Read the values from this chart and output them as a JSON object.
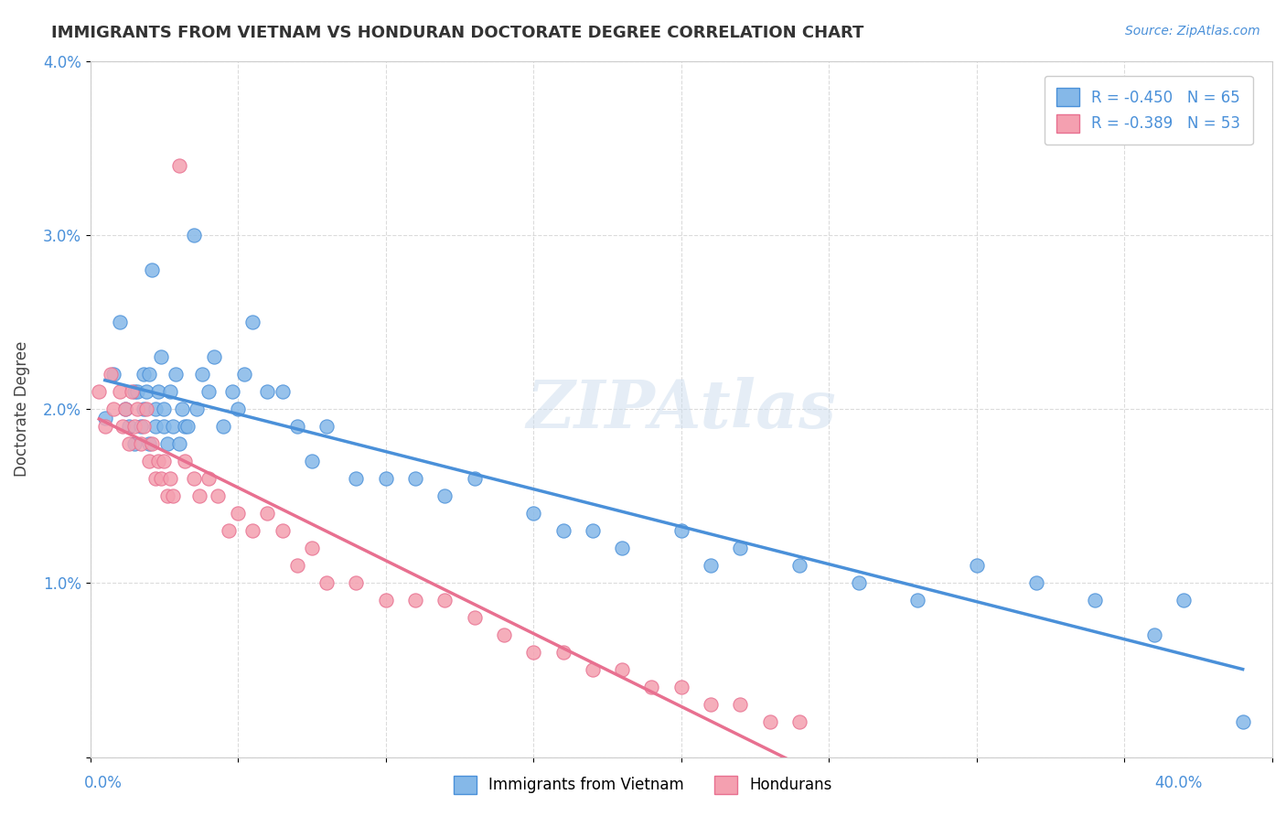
{
  "title": "IMMIGRANTS FROM VIETNAM VS HONDURAN DOCTORATE DEGREE CORRELATION CHART",
  "source": "Source: ZipAtlas.com",
  "ylabel": "Doctorate Degree",
  "yticks": [
    0.0,
    0.01,
    0.02,
    0.03,
    0.04
  ],
  "ytick_labels": [
    "",
    "1.0%",
    "2.0%",
    "3.0%",
    "4.0%"
  ],
  "xticks": [
    0.0,
    0.05,
    0.1,
    0.15,
    0.2,
    0.25,
    0.3,
    0.35,
    0.4
  ],
  "xlim": [
    0.0,
    0.4
  ],
  "ylim": [
    0.0,
    0.04
  ],
  "r_vietnam": -0.45,
  "n_vietnam": 65,
  "r_honduran": -0.389,
  "n_honduran": 53,
  "legend_label_vietnam": "Immigrants from Vietnam",
  "legend_label_honduran": "Hondurans",
  "color_vietnam": "#85b8e8",
  "color_honduran": "#f4a0b0",
  "color_line_vietnam": "#4a90d9",
  "color_line_honduran": "#e87090",
  "watermark": "ZIPAtlas",
  "background_color": "#ffffff",
  "vietnam_x": [
    0.005,
    0.008,
    0.01,
    0.012,
    0.013,
    0.015,
    0.015,
    0.016,
    0.017,
    0.018,
    0.018,
    0.019,
    0.02,
    0.02,
    0.021,
    0.022,
    0.022,
    0.023,
    0.024,
    0.025,
    0.025,
    0.026,
    0.027,
    0.028,
    0.029,
    0.03,
    0.031,
    0.032,
    0.033,
    0.035,
    0.036,
    0.038,
    0.04,
    0.042,
    0.045,
    0.048,
    0.05,
    0.052,
    0.055,
    0.06,
    0.065,
    0.07,
    0.075,
    0.08,
    0.09,
    0.1,
    0.11,
    0.12,
    0.13,
    0.15,
    0.16,
    0.17,
    0.18,
    0.2,
    0.21,
    0.22,
    0.24,
    0.26,
    0.28,
    0.3,
    0.32,
    0.34,
    0.36,
    0.37,
    0.39
  ],
  "vietnam_y": [
    0.0195,
    0.022,
    0.025,
    0.02,
    0.019,
    0.021,
    0.018,
    0.021,
    0.019,
    0.022,
    0.02,
    0.021,
    0.018,
    0.022,
    0.028,
    0.02,
    0.019,
    0.021,
    0.023,
    0.019,
    0.02,
    0.018,
    0.021,
    0.019,
    0.022,
    0.018,
    0.02,
    0.019,
    0.019,
    0.03,
    0.02,
    0.022,
    0.021,
    0.023,
    0.019,
    0.021,
    0.02,
    0.022,
    0.025,
    0.021,
    0.021,
    0.019,
    0.017,
    0.019,
    0.016,
    0.016,
    0.016,
    0.015,
    0.016,
    0.014,
    0.013,
    0.013,
    0.012,
    0.013,
    0.011,
    0.012,
    0.011,
    0.01,
    0.009,
    0.011,
    0.01,
    0.009,
    0.007,
    0.009,
    0.002
  ],
  "honduran_x": [
    0.003,
    0.005,
    0.007,
    0.008,
    0.01,
    0.011,
    0.012,
    0.013,
    0.014,
    0.015,
    0.016,
    0.017,
    0.018,
    0.019,
    0.02,
    0.021,
    0.022,
    0.023,
    0.024,
    0.025,
    0.026,
    0.027,
    0.028,
    0.03,
    0.032,
    0.035,
    0.037,
    0.04,
    0.043,
    0.047,
    0.05,
    0.055,
    0.06,
    0.065,
    0.07,
    0.075,
    0.08,
    0.09,
    0.1,
    0.11,
    0.12,
    0.13,
    0.14,
    0.15,
    0.16,
    0.17,
    0.18,
    0.19,
    0.2,
    0.21,
    0.22,
    0.23,
    0.24
  ],
  "honduran_y": [
    0.021,
    0.019,
    0.022,
    0.02,
    0.021,
    0.019,
    0.02,
    0.018,
    0.021,
    0.019,
    0.02,
    0.018,
    0.019,
    0.02,
    0.017,
    0.018,
    0.016,
    0.017,
    0.016,
    0.017,
    0.015,
    0.016,
    0.015,
    0.034,
    0.017,
    0.016,
    0.015,
    0.016,
    0.015,
    0.013,
    0.014,
    0.013,
    0.014,
    0.013,
    0.011,
    0.012,
    0.01,
    0.01,
    0.009,
    0.009,
    0.009,
    0.008,
    0.007,
    0.006,
    0.006,
    0.005,
    0.005,
    0.004,
    0.004,
    0.003,
    0.003,
    0.002,
    0.002
  ]
}
